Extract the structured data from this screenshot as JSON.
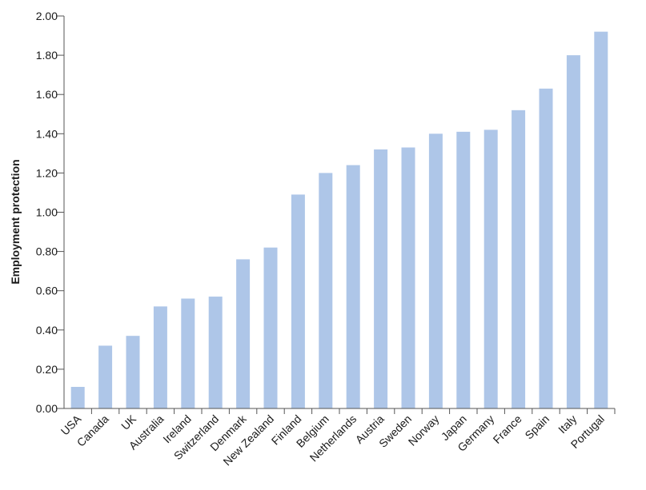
{
  "chart_data": {
    "type": "bar",
    "title": "",
    "xlabel": "",
    "ylabel": "Employment protection",
    "ylim": [
      0,
      2.0
    ],
    "yticks": [
      "0.00",
      "0.20",
      "0.40",
      "0.60",
      "0.80",
      "1.00",
      "1.20",
      "1.40",
      "1.60",
      "1.80",
      "2.00"
    ],
    "grid": false,
    "bar_color": "#aec6e8",
    "categories": [
      "USA",
      "Canada",
      "UK",
      "Australia",
      "Ireland",
      "Switzerland",
      "Denmark",
      "New Zealand",
      "Finland",
      "Belgium",
      "Netherlands",
      "Austria",
      "Sweden",
      "Norway",
      "Japan",
      "Germany",
      "France",
      "Spain",
      "Italy",
      "Portugal"
    ],
    "values": [
      0.11,
      0.32,
      0.37,
      0.52,
      0.56,
      0.57,
      0.76,
      0.82,
      1.09,
      1.2,
      1.24,
      1.32,
      1.33,
      1.4,
      1.41,
      1.42,
      1.52,
      1.63,
      1.8,
      1.92
    ]
  }
}
